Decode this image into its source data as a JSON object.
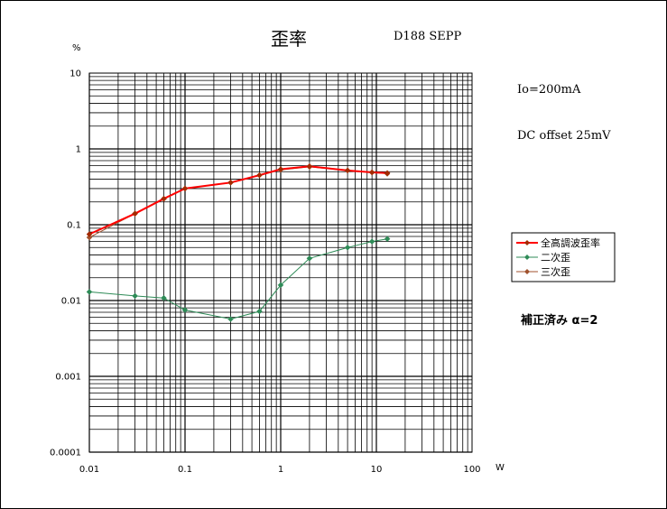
{
  "chart_data": {
    "type": "line",
    "title": "歪率",
    "subtitle": "D188 SEPP",
    "xlabel": "W",
    "ylabel": "%",
    "xscale": "log",
    "yscale": "log",
    "xlim": [
      0.01,
      100
    ],
    "ylim": [
      0.0001,
      10
    ],
    "grid": true,
    "legend_position": "right",
    "x_tick_labels": [
      "0.01",
      "0.1",
      "1",
      "10",
      "100"
    ],
    "y_tick_labels": [
      "0.0001",
      "0.001",
      "0.01",
      "0.1",
      "1",
      "10"
    ],
    "annotations": [
      "Io=200mA",
      "DC offset 25mV",
      "補正済み α=2"
    ],
    "series": [
      {
        "name": "全高調波歪率",
        "color": "#ff0000",
        "marker_color": "#a32a00",
        "x": [
          0.01,
          0.03,
          0.06,
          0.1,
          0.3,
          0.6,
          1,
          2,
          5,
          9,
          13
        ],
        "y": [
          0.075,
          0.14,
          0.22,
          0.3,
          0.36,
          0.45,
          0.54,
          0.59,
          0.52,
          0.49,
          0.48
        ]
      },
      {
        "name": "二次歪",
        "color": "#2e8b57",
        "marker_color": "#2e8b57",
        "x": [
          0.01,
          0.03,
          0.06,
          0.1,
          0.3,
          0.6,
          1,
          2,
          5,
          9,
          13
        ],
        "y": [
          0.013,
          0.0115,
          0.0108,
          0.0075,
          0.0057,
          0.0072,
          0.016,
          0.036,
          0.05,
          0.06,
          0.065
        ]
      },
      {
        "name": "三次歪",
        "color": "#a0522d",
        "marker_color": "#a0522d",
        "x": [
          0.01,
          0.03,
          0.06,
          0.1,
          0.3,
          0.6,
          1,
          2,
          5,
          9,
          13
        ],
        "y": [
          0.068,
          0.14,
          0.22,
          0.3,
          0.36,
          0.45,
          0.53,
          0.58,
          0.52,
          0.49,
          0.47
        ]
      }
    ]
  }
}
